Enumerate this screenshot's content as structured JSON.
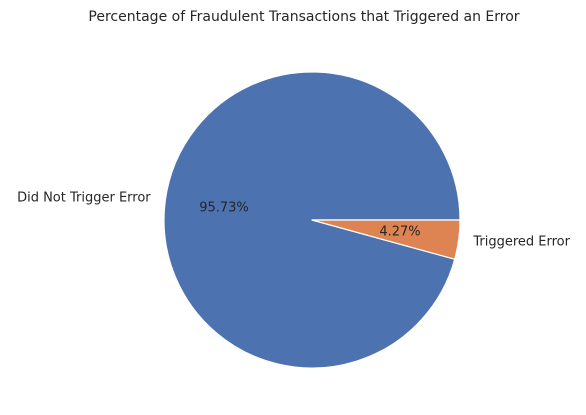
{
  "chart_data": {
    "type": "pie",
    "title": "Percentage of Fraudulent Transactions that Triggered an Error",
    "categories": [
      "Did Not Trigger Error",
      "Triggered Error"
    ],
    "values": [
      95.73,
      4.27
    ],
    "value_labels": [
      "95.73%",
      "4.27%"
    ],
    "colors": [
      "#4c72b0",
      "#dd8452"
    ],
    "start_angle_deg": 0,
    "direction": "counterclockwise",
    "legend": "none"
  }
}
